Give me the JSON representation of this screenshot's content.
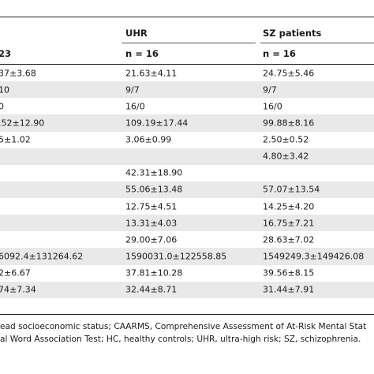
{
  "header": {
    "col1_n": "23",
    "col2_title": "UHR",
    "col2_n": "n = 16",
    "col3_title": "SZ patients",
    "col3_n": "n = 16"
  },
  "rows": [
    {
      "c1": "37±3.68",
      "c2": "21.63±4.11",
      "c3": "24.75±5.46"
    },
    {
      "c1": "10",
      "c2": "9/7",
      "c3": "9/7"
    },
    {
      "c1": "0",
      "c2": "16/0",
      "c3": "16/0"
    },
    {
      "c1": ".52±12.90",
      "c2": "109.19±17.44",
      "c3": "99.88±8.16"
    },
    {
      "c1": "5±1.02",
      "c2": "3.06±0.99",
      "c3": "2.50±0.52"
    },
    {
      "c1": "",
      "c2": "",
      "c3": "4.80±3.42"
    },
    {
      "c1": "",
      "c2": "42.31±18.90",
      "c3": ""
    },
    {
      "c1": "",
      "c2": "55.06±13.48",
      "c3": "57.07±13.54"
    },
    {
      "c1": "",
      "c2": "12.75±4.51",
      "c3": "14.25±4.20"
    },
    {
      "c1": "",
      "c2": "13.31±4.03",
      "c3": "16.75±7.21"
    },
    {
      "c1": "",
      "c2": "29.00±7.06",
      "c3": "28.63±7.02"
    },
    {
      "c1": "6092.4±131264.62",
      "c2": "1590031.0±122558.85",
      "c3": "1549249.3±149426.08"
    },
    {
      "c1": "2±6.67",
      "c2": "37.81±10.28",
      "c3": "39.56±8.15"
    },
    {
      "c1": "74±7.34",
      "c2": "32.44±8.71",
      "c3": "31.44±7.91"
    }
  ],
  "footnote": {
    "line1": "ead socioeconomic status; CAARMS, Comprehensive Assessment of At-Risk Mental Stat",
    "line2": "al Word Association Test; HC, healthy controls; UHR, ultra-high risk; SZ, schizophrenia."
  }
}
